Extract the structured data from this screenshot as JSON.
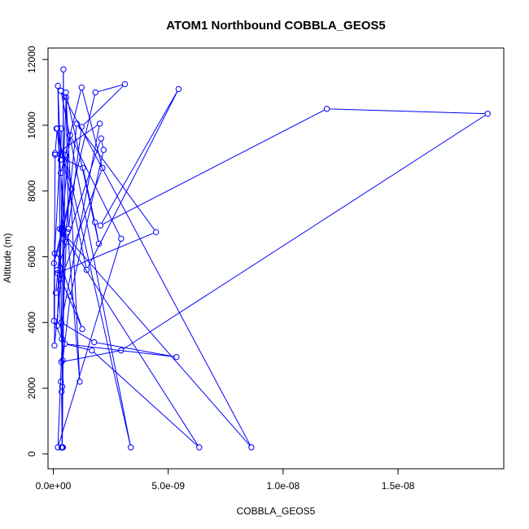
{
  "chart_data": {
    "type": "scatter",
    "title": "ATOM1 Northbound COBBLA_GEOS5",
    "xlabel": "COBBLA_GEOS5",
    "ylabel": "Altitude (m)",
    "xlim": [
      -2.3e-10,
      1.96e-08
    ],
    "ylim": [
      -450,
      12350
    ],
    "x_ticks": [
      {
        "value": 0,
        "label": "0.0e+00"
      },
      {
        "value": 5e-09,
        "label": "5.0e-09"
      },
      {
        "value": 1e-08,
        "label": "1.0e-08"
      },
      {
        "value": 1.5e-08,
        "label": "1.5e-08"
      }
    ],
    "y_ticks": [
      {
        "value": 0,
        "label": "0"
      },
      {
        "value": 2000,
        "label": "2000"
      },
      {
        "value": 4000,
        "label": "4000"
      },
      {
        "value": 6000,
        "label": "6000"
      },
      {
        "value": 8000,
        "label": "8000"
      },
      {
        "value": 10000,
        "label": "10000"
      },
      {
        "value": 12000,
        "label": "12000"
      }
    ],
    "grid": false,
    "legend": "none",
    "colors": {
      "series": "#0000ff",
      "axes": "#000000",
      "background": "#ffffff"
    },
    "style": "points connected by lines",
    "series": [
      {
        "x": [
          3.9e-10,
          3.6e-10,
          3.9e-10,
          3.3e-10,
          3.5e-10,
          2.95e-09,
          1.89e-08,
          1.19e-08,
          2.05e-09,
          5.45e-09,
          1.45e-09,
          1.4e-10,
          8e-10,
          3e-11,
          3.7e-10,
          4.2e-10,
          6.2e-10,
          1.15e-09,
          5.6e-10,
          1.7e-10,
          3.6e-10,
          3.3e-10,
          1.23e-09,
          2.14e-09,
          1.1e-10,
          7.3e-10,
          2.95e-09,
          2e-10,
          5.6e-10,
          1.7e-10,
          8e-11,
          3e-11,
          3.7e-10,
          2e-10,
          3.2e-10,
          3.5e-10,
          6e-11,
          5e-11,
          1.02e-09,
          4.47e-09,
          1.9e-10,
          4.1e-10,
          7.4e-10,
          2.19e-09,
          2.08e-09,
          1.7e-10,
          1.26e-09,
          1.8e-10,
          1.83e-09,
          3.12e-09,
          1.23e-09,
          6.6e-10,
          5.5e-10,
          1.98e-09,
          1.81e-09,
          1.29e-09,
          8e-11,
          2.02e-09,
          3.5e-10,
          1.78e-09,
          5.36e-09,
          5e-10,
          1.68e-09,
          6.35e-09,
          2.8e-10,
          8.62e-09,
          3.3e-10,
          3.37e-09,
          5.1e-10,
          3.9e-10,
          4.4e-10,
          4.2e-10,
          3.8e-10,
          3.6e-10,
          4.2e-10,
          3.6e-10
        ],
        "y": [
          200,
          1900,
          2050,
          2200,
          2800,
          3150,
          10350,
          10500,
          6950,
          11100,
          5600,
          9900,
          8050,
          5800,
          6800,
          6550,
          6750,
          2200,
          10850,
          3900,
          6850,
          8550,
          11150,
          8700,
          4900,
          9700,
          6550,
          200,
          6450,
          9900,
          9150,
          4050,
          3500,
          11200,
          8950,
          9900,
          6100,
          3300,
          10050,
          6750,
          5500,
          2850,
          4800,
          9250,
          9600,
          5600,
          3800,
          6100,
          11000,
          11250,
          9950,
          6850,
          11000,
          6400,
          7050,
          8700,
          9100,
          10050,
          4000,
          3400,
          2950,
          3350,
          3150,
          200,
          6850,
          200,
          11050,
          200,
          9100,
          200,
          11700,
          6750,
          200,
          200,
          200,
          200
        ]
      }
    ]
  }
}
